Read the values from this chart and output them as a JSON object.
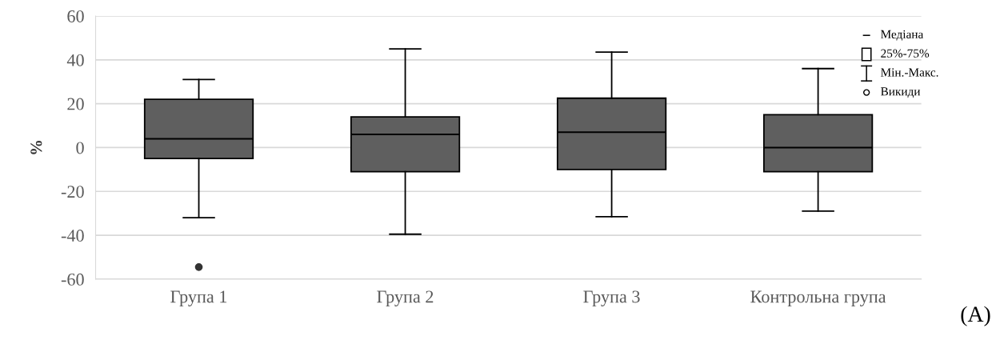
{
  "chart_data": {
    "type": "box",
    "ylabel": "%",
    "categories": [
      "Група 1",
      "Група 2",
      "Група 3",
      "Контрольна група"
    ],
    "boxes": [
      {
        "low": -32,
        "q1": -5,
        "median": 4,
        "q3": 22,
        "high": 31,
        "outliers": [
          -54.5
        ]
      },
      {
        "low": -39.5,
        "q1": -11,
        "median": 6,
        "q3": 14,
        "high": 45
      },
      {
        "low": -31.5,
        "q1": -10,
        "median": 7,
        "q3": 22.5,
        "high": 43.5
      },
      {
        "low": -29,
        "q1": -11,
        "median": 0,
        "q3": 15,
        "high": 36
      }
    ],
    "color": "#5f5f5f",
    "ylim": [
      -60,
      60
    ],
    "yticks": [
      -60,
      -40,
      -20,
      0,
      20,
      40,
      60
    ],
    "grid": "y",
    "annotations": [
      "Медіана",
      "25%-75%",
      "Мін.-Макс.",
      "Викиди",
      "(A)"
    ]
  }
}
